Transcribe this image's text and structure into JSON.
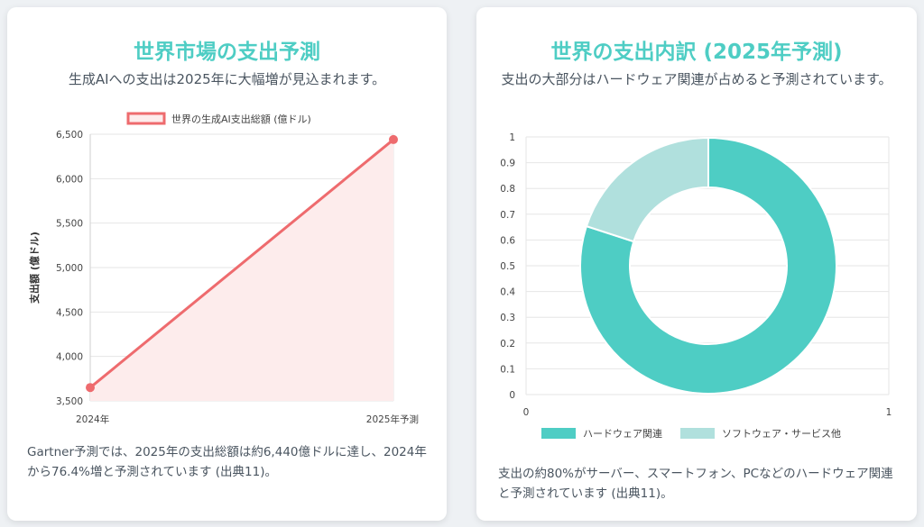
{
  "left": {
    "title": "世界市場の支出予測",
    "subtitle": "生成AIへの支出は2025年に大幅増が見込まれます。",
    "note": "Gartner予測では、2025年の支出総額は約6,440億ドルに達し、2024年から76.4%増と予測されています (出典11)。"
  },
  "right": {
    "title": "世界の支出内訳 (2025年予測)",
    "subtitle": "支出の大部分はハードウェア関連が占めると予測されています。",
    "note": "支出の約80%がサーバー、スマートフォン、PCなどのハードウェア関連と予測されています (出典11)。"
  },
  "colors": {
    "line": "#ee6b6e",
    "line_fill": "#fdecec",
    "hardware": "#4ecdc4",
    "software": "#b0e0dd",
    "grid": "#e6e6e6",
    "title": "#4ecdc4"
  },
  "chart_data": [
    {
      "type": "line",
      "x": [
        "2024年",
        "2025年予測"
      ],
      "series": [
        {
          "name": "世界の生成AI支出総額 (億ドル)",
          "values": [
            3650,
            6440
          ]
        }
      ],
      "ylabel": "支出額 (億ドル)",
      "xlabel": "",
      "ylim": [
        3500,
        6500
      ],
      "yticks": [
        "3,500",
        "4,000",
        "4,500",
        "5,000",
        "5,500",
        "6,000",
        "6,500"
      ],
      "legend": "top",
      "grid": true,
      "filled": true
    },
    {
      "type": "pie",
      "donut": true,
      "categories": [
        "ハードウェア関連",
        "ソフトウェア・サービス他"
      ],
      "values": [
        80,
        20
      ],
      "yticks": [
        "0",
        "0.1",
        "0.2",
        "0.3",
        "0.4",
        "0.5",
        "0.6",
        "0.7",
        "0.8",
        "0.9",
        "1"
      ],
      "xticks": [
        "0",
        "1"
      ],
      "legend": "bottom",
      "grid": true
    }
  ]
}
